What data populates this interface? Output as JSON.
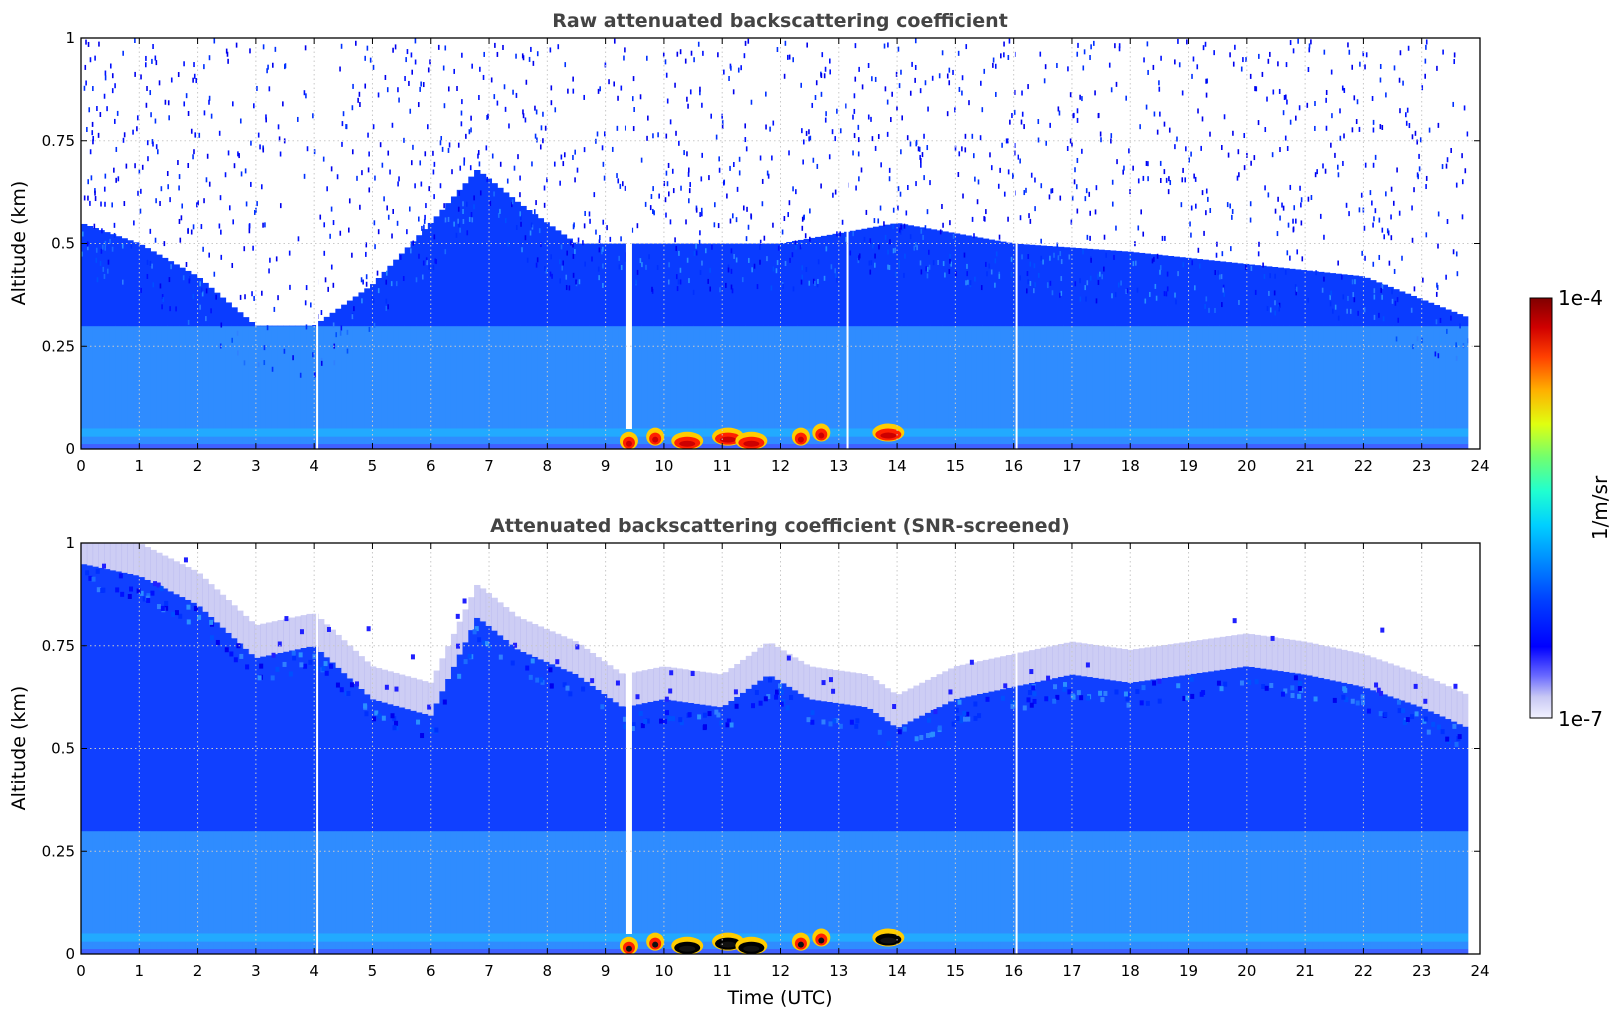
{
  "chart_data": [
    {
      "type": "heatmap",
      "title": "Raw attenuated backscattering coefficient",
      "xlabel": "",
      "ylabel": "Altitude (km)",
      "xlim": [
        0,
        24
      ],
      "ylim": [
        0,
        1
      ],
      "xticks": [
        "0",
        "1",
        "2",
        "3",
        "4",
        "5",
        "6",
        "7",
        "8",
        "9",
        "10",
        "11",
        "12",
        "13",
        "14",
        "15",
        "16",
        "17",
        "18",
        "19",
        "20",
        "21",
        "22",
        "23",
        "24"
      ],
      "yticks": [
        "0",
        "0.25",
        "0.5",
        "0.75",
        "1"
      ],
      "grid": true,
      "data_end_hour": 23.8,
      "noise_floor_km": [
        [
          0,
          0.55
        ],
        [
          1,
          0.5
        ],
        [
          2,
          0.42
        ],
        [
          3,
          0.3
        ],
        [
          4,
          0.3
        ],
        [
          5,
          0.4
        ],
        [
          6,
          0.55
        ],
        [
          6.8,
          0.68
        ],
        [
          7.5,
          0.6
        ],
        [
          8.5,
          0.5
        ],
        [
          10,
          0.5
        ],
        [
          12,
          0.5
        ],
        [
          14,
          0.55
        ],
        [
          16,
          0.5
        ],
        [
          18,
          0.48
        ],
        [
          20,
          0.45
        ],
        [
          22,
          0.42
        ],
        [
          23.8,
          0.32
        ]
      ],
      "hotspots": [
        {
          "time": 9.4,
          "altitude": 0.02,
          "value": "high"
        },
        {
          "time": 9.85,
          "altitude": 0.03,
          "value": "high"
        },
        {
          "time": 10.4,
          "altitude": 0.02,
          "value": "very high"
        },
        {
          "time": 11.1,
          "altitude": 0.03,
          "value": "very high"
        },
        {
          "time": 11.5,
          "altitude": 0.02,
          "value": "very high"
        },
        {
          "time": 12.35,
          "altitude": 0.03,
          "value": "high"
        },
        {
          "time": 12.7,
          "altitude": 0.04,
          "value": "high"
        },
        {
          "time": 13.85,
          "altitude": 0.04,
          "value": "very high"
        }
      ],
      "gaps_hours": [
        4.05,
        9.4,
        13.15,
        16.05
      ]
    },
    {
      "type": "heatmap",
      "title": "Attenuated backscattering coefficient (SNR-screened)",
      "xlabel": "Time (UTC)",
      "ylabel": "Altitude (km)",
      "xlim": [
        0,
        24
      ],
      "ylim": [
        0,
        1
      ],
      "xticks": [
        "0",
        "1",
        "2",
        "3",
        "4",
        "5",
        "6",
        "7",
        "8",
        "9",
        "10",
        "11",
        "12",
        "13",
        "14",
        "15",
        "16",
        "17",
        "18",
        "19",
        "20",
        "21",
        "22",
        "23",
        "24"
      ],
      "yticks": [
        "0",
        "0.25",
        "0.5",
        "0.75",
        "1"
      ],
      "grid": true,
      "data_end_hour": 23.8,
      "cloud_top_km": [
        [
          0,
          0.95
        ],
        [
          1,
          0.92
        ],
        [
          2,
          0.85
        ],
        [
          3,
          0.72
        ],
        [
          4,
          0.75
        ],
        [
          5,
          0.62
        ],
        [
          6,
          0.58
        ],
        [
          6.8,
          0.82
        ],
        [
          7.5,
          0.74
        ],
        [
          8.5,
          0.68
        ],
        [
          9.3,
          0.6
        ],
        [
          10,
          0.62
        ],
        [
          11,
          0.6
        ],
        [
          11.8,
          0.68
        ],
        [
          12.5,
          0.62
        ],
        [
          13.5,
          0.6
        ],
        [
          14,
          0.55
        ],
        [
          15,
          0.62
        ],
        [
          16,
          0.65
        ],
        [
          17,
          0.68
        ],
        [
          18,
          0.66
        ],
        [
          19,
          0.68
        ],
        [
          20,
          0.7
        ],
        [
          21,
          0.68
        ],
        [
          22,
          0.65
        ],
        [
          23,
          0.6
        ],
        [
          23.8,
          0.55
        ]
      ],
      "gaps_hours": [
        4.05,
        9.4,
        16.05
      ]
    }
  ],
  "colorbar": {
    "label": "1/m/sr",
    "max_label": "1e-4",
    "min_label": "1e-7",
    "scale": "log",
    "colormap": [
      "#eeeeff",
      "#aaaaee",
      "#5555ff",
      "#0000ff",
      "#0044ff",
      "#0088ff",
      "#00ccff",
      "#00ffcc",
      "#44ff44",
      "#ccff00",
      "#ffcc00",
      "#ff6600",
      "#ff0000",
      "#cc0000",
      "#800000"
    ]
  }
}
